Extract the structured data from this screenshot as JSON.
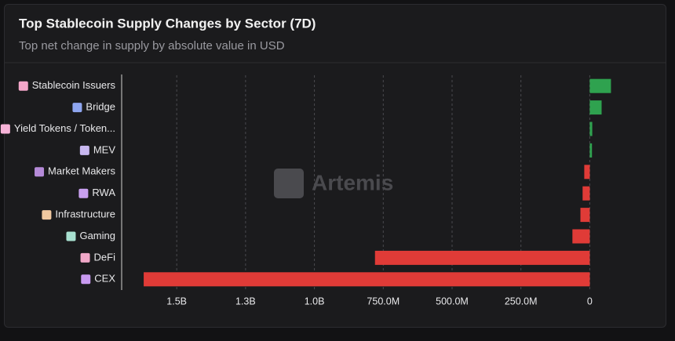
{
  "chart_data": {
    "type": "hbar",
    "title": "Top Stablecoin Supply Changes by Sector (7D)",
    "subtitle": "Top net change in supply by absolute value in USD",
    "watermark": "Artemis",
    "categories": [
      "Stablecoin Issuers",
      "Bridge",
      "Yield Tokens / Token...",
      "MEV",
      "Market Makers",
      "RWA",
      "Infrastructure",
      "Gaming",
      "DeFi",
      "CEX"
    ],
    "values": [
      77000000,
      43000000,
      9000000,
      8000000,
      -20000000,
      -26000000,
      -34000000,
      -63000000,
      -780000000,
      -1620000000
    ],
    "positive_color": "#2fa24f",
    "negative_color": "#e03b37",
    "xlim": [
      -1700000000,
      110000000
    ],
    "xticks": [
      {
        "value": -1500000000,
        "label": "1.5B"
      },
      {
        "value": -1250000000,
        "label": "1.3B"
      },
      {
        "value": -1000000000,
        "label": "1.0B"
      },
      {
        "value": -750000000,
        "label": "750.0M"
      },
      {
        "value": -500000000,
        "label": "500.0M"
      },
      {
        "value": -250000000,
        "label": "250.0M"
      },
      0
    ],
    "grid": true
  }
}
